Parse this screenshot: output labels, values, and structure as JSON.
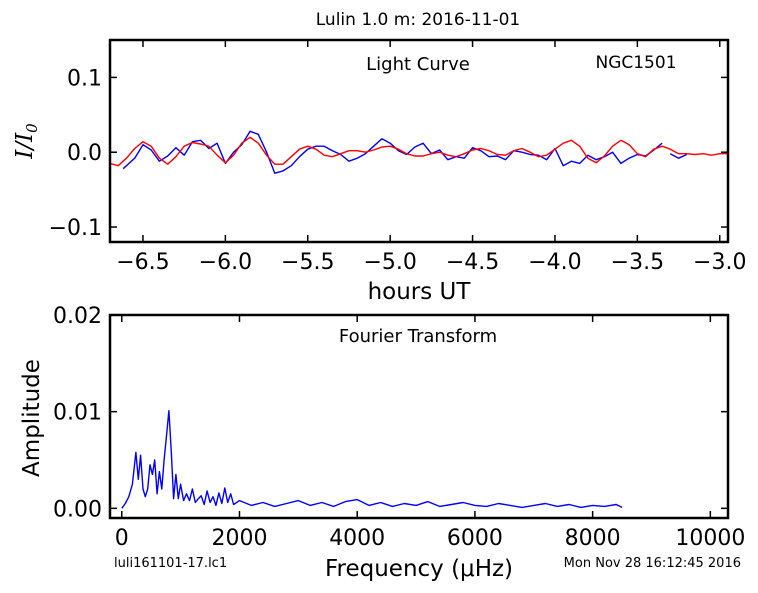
{
  "figure_title": "Lulin 1.0 m:  2016-11-01",
  "footer": {
    "file": "luli161101-17.lc1",
    "date": "Mon Nov 28 16:12:45 2016"
  },
  "chart_data": [
    {
      "type": "line",
      "panel": "top",
      "title": "Light Curve",
      "annotation": "NGC1501",
      "xlabel": "hours UT",
      "ylabel": "I/I0",
      "xlim": [
        -6.7,
        -2.95
      ],
      "ylim": [
        -0.12,
        0.15
      ],
      "xticks": [
        -6.5,
        -6.0,
        -5.5,
        -5.0,
        -4.5,
        -4.0,
        -3.5,
        -3.0
      ],
      "xtick_labels": [
        "−6.5",
        "−6.0",
        "−5.5",
        "−5.0",
        "−4.5",
        "−4.0",
        "−3.5",
        "−3.0"
      ],
      "yticks": [
        -0.1,
        0.0,
        0.1
      ],
      "ytick_labels": [
        "−0.1",
        "0.0",
        "0.1"
      ],
      "series": [
        {
          "color": "#0000ff",
          "segments": [
            {
              "x": [
                -6.62,
                -6.55,
                -6.5,
                -6.45,
                -6.4,
                -6.35,
                -6.3,
                -6.25,
                -6.2,
                -6.15,
                -6.1,
                -6.05,
                -6.0,
                -5.95,
                -5.9,
                -5.85,
                -5.8,
                -5.75,
                -5.7,
                -5.65,
                -5.6,
                -5.55,
                -5.5,
                -5.45,
                -5.4,
                -5.35,
                -5.3,
                -5.25,
                -5.2,
                -5.15,
                -5.1,
                -5.05,
                -5.0,
                -4.95,
                -4.9,
                -4.85,
                -4.8,
                -4.75,
                -4.7,
                -4.65,
                -4.6,
                -4.55,
                -4.5,
                -4.45,
                -4.4,
                -4.35,
                -4.3,
                -4.25,
                -4.2,
                -4.15,
                -4.1,
                -4.05,
                -4.0,
                -3.95,
                -3.9,
                -3.85,
                -3.8,
                -3.75,
                -3.7,
                -3.65,
                -3.6,
                -3.55,
                -3.5,
                -3.45,
                -3.4,
                -3.35
              ],
              "y": [
                -0.022,
                -0.008,
                0.01,
                0.003,
                -0.012,
                -0.005,
                0.006,
                -0.004,
                0.014,
                0.016,
                0.005,
                0.012,
                -0.015,
                0.0,
                0.01,
                0.028,
                0.024,
                0.0,
                -0.028,
                -0.025,
                -0.018,
                -0.006,
                0.004,
                0.008,
                0.008,
                0.002,
                -0.003,
                -0.012,
                -0.008,
                -0.002,
                0.008,
                0.018,
                0.012,
                0.002,
                -0.003,
                0.007,
                0.012,
                -0.002,
                0.003,
                -0.01,
                -0.006,
                -0.008,
                0.006,
                0.002,
                -0.006,
                -0.005,
                -0.01,
                0.002,
                0.0,
                -0.003,
                -0.004,
                -0.01,
                0.005,
                -0.018,
                -0.012,
                -0.015,
                -0.004,
                -0.01,
                -0.006,
                0.0,
                -0.015,
                -0.008,
                -0.003,
                -0.005,
                0.003,
                0.012
              ]
            },
            {
              "x": [
                -3.3,
                -3.25,
                -3.2
              ],
              "y": [
                -0.002,
                -0.008,
                -0.003
              ]
            }
          ]
        },
        {
          "color": "#ff0000",
          "x": [
            -6.7,
            -6.65,
            -6.6,
            -6.55,
            -6.5,
            -6.45,
            -6.4,
            -6.35,
            -6.3,
            -6.25,
            -6.2,
            -6.15,
            -6.1,
            -6.05,
            -6.0,
            -5.95,
            -5.9,
            -5.85,
            -5.8,
            -5.75,
            -5.7,
            -5.65,
            -5.6,
            -5.55,
            -5.5,
            -5.45,
            -5.4,
            -5.35,
            -5.3,
            -5.25,
            -5.2,
            -5.15,
            -5.1,
            -5.05,
            -5.0,
            -4.95,
            -4.9,
            -4.85,
            -4.8,
            -4.75,
            -4.7,
            -4.65,
            -4.6,
            -4.55,
            -4.5,
            -4.45,
            -4.4,
            -4.35,
            -4.3,
            -4.25,
            -4.2,
            -4.15,
            -4.1,
            -4.05,
            -4.0,
            -3.95,
            -3.9,
            -3.85,
            -3.8,
            -3.75,
            -3.7,
            -3.65,
            -3.6,
            -3.55,
            -3.5,
            -3.45,
            -3.4,
            -3.35,
            -3.3,
            -3.25,
            -3.2,
            -3.15,
            -3.1,
            -3.05,
            -3.0,
            -2.95
          ],
          "y": [
            -0.015,
            -0.018,
            -0.008,
            0.005,
            0.014,
            0.008,
            -0.008,
            -0.016,
            -0.006,
            0.008,
            0.013,
            0.011,
            0.008,
            -0.004,
            -0.014,
            -0.004,
            0.012,
            0.02,
            0.012,
            -0.004,
            -0.016,
            -0.016,
            -0.006,
            0.004,
            0.008,
            0.004,
            -0.004,
            -0.006,
            -0.002,
            0.002,
            0.002,
            0.0,
            0.003,
            0.007,
            0.008,
            0.004,
            -0.002,
            -0.005,
            -0.005,
            -0.002,
            0.0,
            -0.004,
            -0.006,
            -0.002,
            0.003,
            0.005,
            0.002,
            -0.003,
            -0.004,
            0.002,
            0.005,
            0.0,
            -0.006,
            -0.004,
            0.004,
            0.012,
            0.016,
            0.008,
            -0.008,
            -0.014,
            -0.005,
            0.008,
            0.016,
            0.01,
            -0.002,
            -0.006,
            0.004,
            0.008,
            0.004,
            -0.002,
            -0.002,
            -0.003,
            -0.002,
            -0.004,
            -0.002,
            -0.002
          ]
        }
      ],
      "grid": false
    },
    {
      "type": "line",
      "panel": "bottom",
      "title": "Fourier Transform",
      "xlabel": "Frequency (μHz)",
      "ylabel": "Amplitude",
      "xlim": [
        -200,
        10300
      ],
      "ylim": [
        -0.001,
        0.02
      ],
      "xticks": [
        0,
        2000,
        4000,
        6000,
        8000,
        10000
      ],
      "xtick_labels": [
        "0",
        "2000",
        "4000",
        "6000",
        "8000",
        "10000"
      ],
      "yticks": [
        0.0,
        0.01,
        0.02
      ],
      "ytick_labels": [
        "0.00",
        "0.01",
        "0.02"
      ],
      "series": [
        {
          "color": "#0000ff",
          "x": [
            0,
            60,
            120,
            180,
            240,
            280,
            320,
            360,
            400,
            440,
            480,
            520,
            560,
            600,
            640,
            680,
            720,
            760,
            800,
            840,
            880,
            920,
            960,
            1000,
            1050,
            1100,
            1150,
            1200,
            1250,
            1300,
            1350,
            1400,
            1450,
            1500,
            1550,
            1600,
            1650,
            1700,
            1750,
            1800,
            1850,
            1900,
            2000,
            2200,
            2400,
            2600,
            2800,
            3000,
            3200,
            3400,
            3600,
            3800,
            4000,
            4200,
            4400,
            4600,
            4800,
            5000,
            5200,
            5400,
            5600,
            5800,
            6000,
            6200,
            6400,
            6600,
            6800,
            7000,
            7200,
            7400,
            7600,
            7800,
            8000,
            8200,
            8400,
            8500
          ],
          "y": [
            0.0,
            0.0005,
            0.0012,
            0.0025,
            0.0058,
            0.003,
            0.0055,
            0.002,
            0.0012,
            0.002,
            0.0045,
            0.0035,
            0.005,
            0.0015,
            0.0038,
            0.002,
            0.005,
            0.0075,
            0.0101,
            0.006,
            0.001,
            0.0035,
            0.001,
            0.0025,
            0.0008,
            0.0015,
            0.0008,
            0.002,
            0.0006,
            0.001,
            0.0013,
            0.0004,
            0.0018,
            0.0006,
            0.0012,
            0.0003,
            0.0016,
            0.0005,
            0.0021,
            0.0006,
            0.0015,
            0.0004,
            0.0008,
            0.0003,
            0.0006,
            0.0002,
            0.0005,
            0.0008,
            0.0003,
            0.0006,
            0.0002,
            0.0007,
            0.0009,
            0.0003,
            0.0006,
            0.0002,
            0.0005,
            0.0003,
            0.0007,
            0.0002,
            0.0004,
            0.0006,
            0.0003,
            0.0002,
            0.0005,
            0.0003,
            0.0001,
            0.0003,
            0.0005,
            0.0002,
            0.0004,
            0.0001,
            0.0003,
            0.0002,
            0.0004,
            0.0001
          ]
        }
      ],
      "grid": false
    }
  ]
}
